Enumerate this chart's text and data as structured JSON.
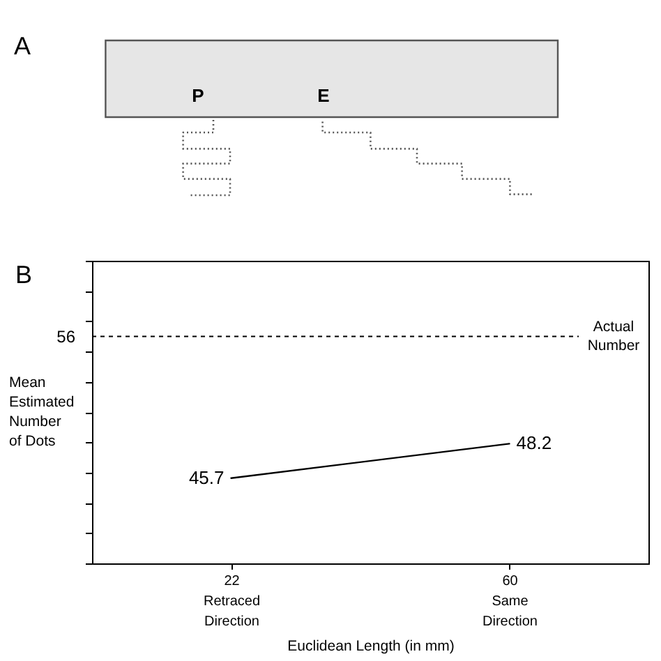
{
  "chart_data": [
    {
      "type": "other",
      "title": "A",
      "annotations": [
        "P",
        "E"
      ]
    },
    {
      "type": "line",
      "title": "B",
      "xlabel": "Euclidean Length (in mm)",
      "ylabel": "Mean\nEstimated\nNumber\nof Dots",
      "categories": [
        "22\nRetraced\nDirection",
        "60\nSame\nDirection"
      ],
      "series": [
        {
          "color": "#000000",
          "values": [
            45.7,
            48.2
          ]
        }
      ],
      "ylim": [
        39.5,
        61.5
      ],
      "yticks": [
        {
          "value": 39.5,
          "label": null
        },
        {
          "value": 41.7,
          "label": null
        },
        {
          "value": 43.9,
          "label": null
        },
        {
          "value": 46.1,
          "label": null
        },
        {
          "value": 48.3,
          "label": null
        },
        {
          "value": 50.5,
          "label": null
        },
        {
          "value": 52.7,
          "label": null
        },
        {
          "value": 54.9,
          "label": null
        },
        {
          "value": 57.1,
          "label": null
        },
        {
          "value": 59.3,
          "label": null
        },
        {
          "value": 61.5,
          "label": null
        }
      ],
      "ref_lines": [
        {
          "axis": "y",
          "value": 56,
          "label": "Actual\nNumber",
          "line_style": "dashed",
          "color": "#000000"
        }
      ],
      "annotations": [
        "56"
      ],
      "data_labels": true,
      "line_style": "solid"
    }
  ]
}
